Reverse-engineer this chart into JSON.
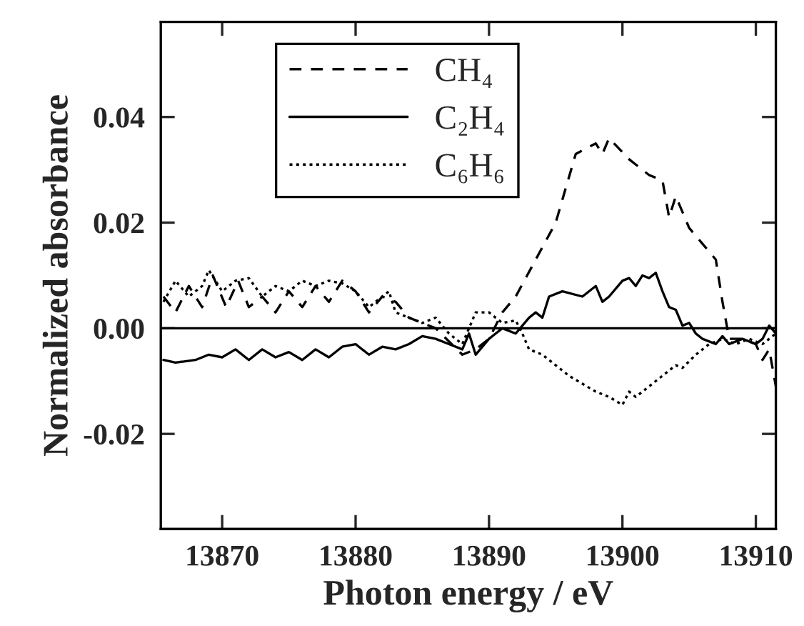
{
  "chart_data": {
    "type": "line",
    "xlabel": "Photon energy / eV",
    "ylabel": "Normalized absorbance",
    "xlim": [
      13865.4,
      13911.5
    ],
    "xticks": [
      13870,
      13880,
      13890,
      13900,
      13910
    ],
    "ylim": [
      -0.038,
      0.058
    ],
    "yticks": [
      {
        "value": -0.02,
        "label": "-0.02"
      },
      {
        "value": 0,
        "label": "0.00"
      },
      {
        "value": 0.02,
        "label": "0.02"
      },
      {
        "value": 0.04,
        "label": "0.04"
      }
    ],
    "grid": false,
    "legend": "top left",
    "marker": "none",
    "ref_lines": [
      {
        "axis": "y",
        "value": 0,
        "color": "#000000",
        "line_style": "solid"
      }
    ],
    "series": [
      {
        "name": "CH₄",
        "color": "#000000",
        "line_style": "dashed",
        "x": [
          13865.6,
          13866.5,
          13867.5,
          13868.5,
          13869.3,
          13870.3,
          13871.2,
          13872,
          13873,
          13874,
          13875,
          13876,
          13877,
          13878,
          13879,
          13880,
          13881,
          13882,
          13883,
          13884,
          13886,
          13888,
          13889,
          13890,
          13891,
          13892,
          13893.5,
          13895,
          13896.5,
          13898,
          13898.5,
          13899,
          13900.5,
          13901,
          13902,
          13903,
          13903.5,
          13904,
          13905,
          13906,
          13907,
          13907.5,
          13908,
          13909,
          13910,
          13910.5,
          13911,
          13911.5
        ],
        "values": [
          0.006,
          0.003,
          0.008,
          0.004,
          0.01,
          0.004,
          0.009,
          0.004,
          0.006,
          0.003,
          0.007,
          0.004,
          0.008,
          0.005,
          0.009,
          0.007,
          0.003,
          0.006,
          0.005,
          0.002,
          0.0,
          -0.005,
          -0.004,
          -0.002,
          0.003,
          0.006,
          0.013,
          0.02,
          0.033,
          0.035,
          0.033,
          0.036,
          0.032,
          0.031,
          0.029,
          0.028,
          0.021,
          0.025,
          0.019,
          0.016,
          0.013,
          0.005,
          -0.002,
          -0.002,
          -0.003,
          -0.006,
          -0.004,
          -0.011
        ]
      },
      {
        "name": "C₂H₄",
        "color": "#000000",
        "line_style": "solid",
        "x": [
          13865.6,
          13866.5,
          13868,
          13869,
          13870,
          13871,
          13872,
          13873,
          13874,
          13875,
          13876,
          13877,
          13878,
          13879,
          13880,
          13881,
          13882,
          13883,
          13884,
          13885,
          13886,
          13887,
          13888,
          13888.5,
          13889,
          13890,
          13890.5,
          13891,
          13892,
          13893,
          13893.5,
          13894,
          13894.5,
          13895.5,
          13897,
          13898,
          13898.5,
          13899,
          13900,
          13900.5,
          13901,
          13901.5,
          13902,
          13902.5,
          13903,
          13903.5,
          13904,
          13904.5,
          13905,
          13905.5,
          13906,
          13907,
          13907.5,
          13908,
          13909,
          13910,
          13910.5,
          13911,
          13911.5
        ],
        "values": [
          -0.006,
          -0.0065,
          -0.006,
          -0.005,
          -0.0055,
          -0.004,
          -0.006,
          -0.004,
          -0.0055,
          -0.0045,
          -0.006,
          -0.004,
          -0.0055,
          -0.0035,
          -0.003,
          -0.005,
          -0.0035,
          -0.004,
          -0.003,
          -0.0015,
          -0.002,
          -0.003,
          -0.004,
          -0.001,
          -0.005,
          -0.002,
          -0.001,
          0.0,
          -0.001,
          0.002,
          0.003,
          0.002,
          0.006,
          0.007,
          0.006,
          0.008,
          0.005,
          0.006,
          0.009,
          0.0095,
          0.008,
          0.01,
          0.0095,
          0.0105,
          0.007,
          0.004,
          0.0035,
          0.0005,
          0.001,
          -0.001,
          -0.002,
          -0.003,
          -0.0015,
          -0.003,
          -0.002,
          -0.003,
          -0.002,
          0.0005,
          -0.001
        ]
      },
      {
        "name": "C₆H₆",
        "color": "#000000",
        "line_style": "dotted",
        "x": [
          13865.6,
          13866.5,
          13867.5,
          13868.5,
          13869,
          13870,
          13871,
          13872,
          13873,
          13874,
          13875,
          13876,
          13877,
          13878,
          13879,
          13880,
          13881,
          13882.5,
          13883,
          13884,
          13885,
          13886,
          13887,
          13888,
          13889,
          13890,
          13891,
          13892,
          13892.5,
          13893,
          13894,
          13895,
          13896,
          13897,
          13898,
          13899,
          13900,
          13900.5,
          13901,
          13902,
          13903,
          13904,
          13904.5,
          13905.5,
          13906.5,
          13907.5,
          13908.5,
          13909.5,
          13910.5,
          13911.5
        ],
        "values": [
          0.005,
          0.009,
          0.006,
          0.008,
          0.011,
          0.007,
          0.009,
          0.0095,
          0.006,
          0.008,
          0.007,
          0.009,
          0.008,
          0.009,
          0.0085,
          0.007,
          0.004,
          0.007,
          0.003,
          0.002,
          0.001,
          0.002,
          -0.001,
          -0.003,
          0.003,
          0.003,
          0.001,
          0.0015,
          -0.001,
          -0.004,
          -0.005,
          -0.007,
          -0.009,
          -0.0105,
          -0.012,
          -0.013,
          -0.0145,
          -0.012,
          -0.013,
          -0.011,
          -0.009,
          -0.007,
          -0.0075,
          -0.005,
          -0.003,
          -0.002,
          -0.003,
          -0.002,
          -0.003,
          -0.001
        ]
      }
    ]
  }
}
